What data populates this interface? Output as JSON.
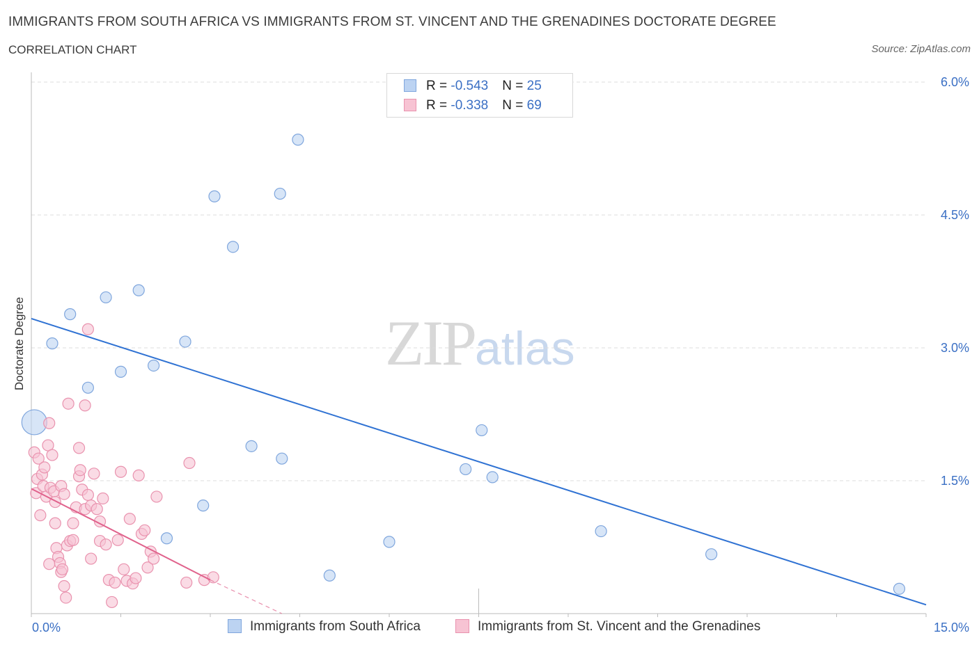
{
  "title": "IMMIGRANTS FROM SOUTH AFRICA VS IMMIGRANTS FROM ST. VINCENT AND THE GRENADINES DOCTORATE DEGREE",
  "subtitle": "CORRELATION CHART",
  "source": "Source: ZipAtlas.com",
  "watermark": {
    "zip": "ZIP",
    "atlas": "atlas"
  },
  "legend": [
    {
      "r_label": "R = ",
      "r_value": "-0.543",
      "n_label": "N = ",
      "n_value": "25"
    },
    {
      "r_label": "R = ",
      "r_value": "-0.338",
      "n_label": "N = ",
      "n_value": "69"
    }
  ],
  "colors": {
    "blue_fill": "#bcd3f2",
    "blue_stroke": "#7fa6dd",
    "blue_line": "#2f72d3",
    "pink_fill": "#f7c3d3",
    "pink_stroke": "#e992ae",
    "pink_line": "#e0628c",
    "axis_text": "#3a6fc4",
    "grid": "#dcdcdc"
  },
  "chart_data": {
    "type": "scatter",
    "title": "IMMIGRANTS FROM SOUTH AFRICA VS IMMIGRANTS FROM ST. VINCENT AND THE GRENADINES DOCTORATE DEGREE",
    "xlabel": "",
    "ylabel": "Doctorate Degree",
    "xlim": [
      0,
      15
    ],
    "ylim": [
      0,
      6
    ],
    "x_tick_labels": [
      "0.0%",
      "15.0%"
    ],
    "y_ticks": [
      1.5,
      3.0,
      4.5,
      6.0
    ],
    "y_tick_labels": [
      "1.5%",
      "3.0%",
      "4.5%",
      "6.0%"
    ],
    "grid": true,
    "legend_position": "top-center",
    "series": [
      {
        "name": "Immigrants from South Africa",
        "color": "blue",
        "R": -0.543,
        "N": 25,
        "trend": [
          [
            0.0,
            3.33
          ],
          [
            15.0,
            0.1
          ]
        ],
        "points": [
          [
            0.05,
            2.16,
            "big"
          ],
          [
            0.35,
            3.05
          ],
          [
            0.65,
            3.38
          ],
          [
            0.95,
            2.55
          ],
          [
            1.25,
            3.57
          ],
          [
            1.5,
            2.73
          ],
          [
            1.8,
            3.65
          ],
          [
            2.05,
            2.8
          ],
          [
            2.27,
            0.85
          ],
          [
            2.58,
            3.07
          ],
          [
            2.88,
            1.22
          ],
          [
            3.07,
            4.71
          ],
          [
            3.38,
            4.14
          ],
          [
            3.69,
            1.89
          ],
          [
            4.17,
            4.74
          ],
          [
            4.2,
            1.75
          ],
          [
            4.47,
            5.35
          ],
          [
            5.0,
            0.43
          ],
          [
            6.0,
            0.81
          ],
          [
            7.28,
            1.63
          ],
          [
            7.55,
            2.07
          ],
          [
            7.73,
            1.54
          ],
          [
            9.55,
            0.93
          ],
          [
            11.4,
            0.67
          ],
          [
            14.55,
            0.28
          ]
        ]
      },
      {
        "name": "Immigrants from St. Vincent and the Grenadines",
        "color": "pink",
        "R": -0.338,
        "N": 69,
        "trend": [
          [
            0.0,
            1.41
          ],
          [
            3.0,
            0.38
          ]
        ],
        "trend_dashed": [
          [
            3.0,
            0.38
          ],
          [
            4.2,
            0.0
          ]
        ],
        "points": [
          [
            0.05,
            1.82
          ],
          [
            0.08,
            1.36
          ],
          [
            0.1,
            1.52
          ],
          [
            0.12,
            1.75
          ],
          [
            0.15,
            1.11
          ],
          [
            0.18,
            1.57
          ],
          [
            0.2,
            1.44
          ],
          [
            0.22,
            1.65
          ],
          [
            0.25,
            1.32
          ],
          [
            0.28,
            1.9
          ],
          [
            0.3,
            2.15
          ],
          [
            0.32,
            1.42
          ],
          [
            0.35,
            1.79
          ],
          [
            0.38,
            1.38
          ],
          [
            0.4,
            1.02
          ],
          [
            0.42,
            0.74
          ],
          [
            0.45,
            0.64
          ],
          [
            0.48,
            0.57
          ],
          [
            0.5,
            0.47
          ],
          [
            0.52,
            0.5
          ],
          [
            0.55,
            0.31
          ],
          [
            0.58,
            0.18
          ],
          [
            0.6,
            0.77
          ],
          [
            0.65,
            0.82
          ],
          [
            0.7,
            1.02
          ],
          [
            0.75,
            1.2
          ],
          [
            0.8,
            1.55
          ],
          [
            0.82,
            1.62
          ],
          [
            0.85,
            1.4
          ],
          [
            0.9,
            1.18
          ],
          [
            0.95,
            1.34
          ],
          [
            1.0,
            1.22
          ],
          [
            1.05,
            1.58
          ],
          [
            1.1,
            1.18
          ],
          [
            1.15,
            0.82
          ],
          [
            1.2,
            1.3
          ],
          [
            1.25,
            0.78
          ],
          [
            1.3,
            0.38
          ],
          [
            1.35,
            0.13
          ],
          [
            1.4,
            0.35
          ],
          [
            1.45,
            0.83
          ],
          [
            1.5,
            1.6
          ],
          [
            1.55,
            0.5
          ],
          [
            1.6,
            0.37
          ],
          [
            1.65,
            1.07
          ],
          [
            1.7,
            0.34
          ],
          [
            1.75,
            0.4
          ],
          [
            1.8,
            1.56
          ],
          [
            1.85,
            0.9
          ],
          [
            1.9,
            0.94
          ],
          [
            1.95,
            0.52
          ],
          [
            2.0,
            0.7
          ],
          [
            2.05,
            0.62
          ],
          [
            2.1,
            1.32
          ],
          [
            2.6,
            0.35
          ],
          [
            2.65,
            1.7
          ],
          [
            2.9,
            0.38
          ],
          [
            3.05,
            0.41
          ],
          [
            0.62,
            2.37
          ],
          [
            0.9,
            2.35
          ],
          [
            0.8,
            1.87
          ],
          [
            0.95,
            3.21
          ],
          [
            0.7,
            0.83
          ],
          [
            0.5,
            1.44
          ],
          [
            0.55,
            1.35
          ],
          [
            1.0,
            0.62
          ],
          [
            1.15,
            1.04
          ],
          [
            0.4,
            1.26
          ],
          [
            0.3,
            0.56
          ]
        ]
      }
    ]
  },
  "bottom_legend": [
    {
      "label": "Immigrants from South Africa"
    },
    {
      "label": "Immigrants from St. Vincent and the Grenadines"
    }
  ]
}
